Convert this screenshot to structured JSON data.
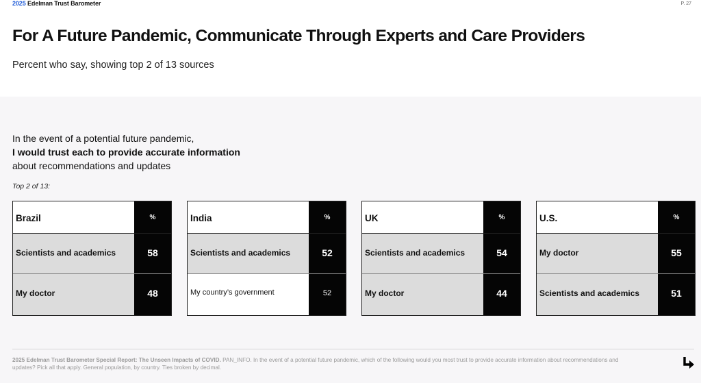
{
  "header": {
    "brand_year": "2025",
    "brand_name": " Edelman Trust Barometer",
    "page": "P. 27"
  },
  "title": "For A Future Pandemic, Communicate Through Experts and Care Providers",
  "subtitle": "Percent who say, showing top 2 of 13 sources",
  "question": {
    "line1": "In the event of a potential future pandemic,",
    "line2": "I would trust each to provide accurate information",
    "line3": "about recommendations and updates"
  },
  "top_note": "Top 2 of 13:",
  "column_header": "%",
  "panels": [
    {
      "country": "Brazil",
      "rows": [
        {
          "label": "Scientists and academics",
          "value": "58"
        },
        {
          "label": "My doctor",
          "value": "48"
        }
      ]
    },
    {
      "country": "India",
      "rows": [
        {
          "label": "Scientists and academics",
          "value": "52"
        },
        {
          "label": "My country’s government",
          "value": "52"
        }
      ]
    },
    {
      "country": "UK",
      "rows": [
        {
          "label": "Scientists and academics",
          "value": "54"
        },
        {
          "label": "My doctor",
          "value": "44"
        }
      ]
    },
    {
      "country": "U.S.",
      "rows": [
        {
          "label": "My doctor",
          "value": "55"
        },
        {
          "label": "Scientists and academics",
          "value": "51"
        }
      ]
    }
  ],
  "footnote": {
    "bold": "2025 Edelman Trust Barometer Special Report: The Unseen Impacts of COVID.",
    "text": " PAN_INFO. In the event of a potential future pandemic, which of the following would you most trust to provide accurate information about recommendations and updates? Pick all that apply. General population, by country. Ties broken by decimal."
  },
  "icons": {
    "next": "arrow-down-right-icon"
  },
  "colors": {
    "brand_blue": "#1f5bd8",
    "value_block": "#050505",
    "highlight_row": "#dcdcdc"
  }
}
